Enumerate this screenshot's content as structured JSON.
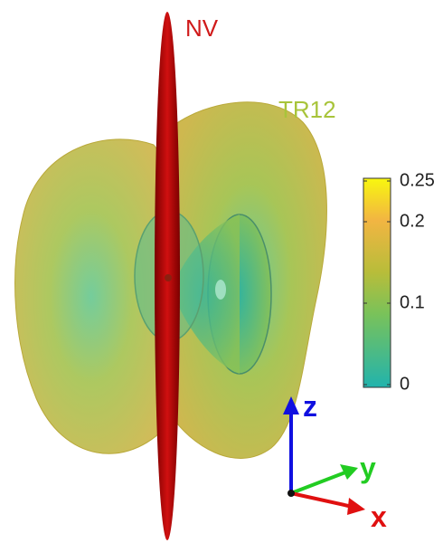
{
  "labels": {
    "nv": "NV",
    "tr12": "TR12"
  },
  "colorbar": {
    "lim": [
      0,
      0.25
    ],
    "ticks": [
      0,
      0.1,
      0.2,
      0.25
    ]
  },
  "axes": {
    "z": "z",
    "y": "y",
    "x": "x"
  }
}
